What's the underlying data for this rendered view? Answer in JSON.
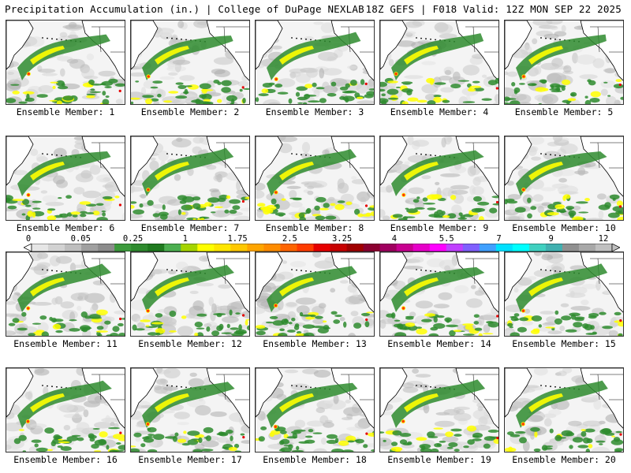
{
  "header": {
    "left": "Precipitation Accumulation (in.) | College of DuPage NEXLAB",
    "right": "18Z GEFS | F018 Valid: 12Z MON SEP 22 2025"
  },
  "colorbar": {
    "tick_labels": [
      "0",
      "0.05",
      "0.25",
      "1",
      "1.75",
      "2.5",
      "3.25",
      "4",
      "5.5",
      "7",
      "9",
      "12"
    ],
    "colors": [
      "#e6e6e6",
      "#d2d2d2",
      "#bebebe",
      "#a0a0a0",
      "#8c8c8c",
      "#3c9a3c",
      "#2e8b2e",
      "#1f7a1f",
      "#4caf50",
      "#a5d400",
      "#ffff00",
      "#ffe600",
      "#ffc800",
      "#ffa500",
      "#ff8c00",
      "#ff6400",
      "#ff3c00",
      "#e60000",
      "#c80000",
      "#a00000",
      "#8b0030",
      "#a00060",
      "#c80090",
      "#e600c8",
      "#ff00ff",
      "#c040ff",
      "#8060ff",
      "#40a0ff",
      "#00e0ff",
      "#00ffff",
      "#40d0c0",
      "#40b0b0",
      "#909090",
      "#a8a8a8",
      "#c0c0c0"
    ]
  },
  "panels": [
    {
      "label": "Ensemble Member: 1"
    },
    {
      "label": "Ensemble Member: 2"
    },
    {
      "label": "Ensemble Member: 3"
    },
    {
      "label": "Ensemble Member: 4"
    },
    {
      "label": "Ensemble Member: 5"
    },
    {
      "label": "Ensemble Member: 6"
    },
    {
      "label": "Ensemble Member: 7"
    },
    {
      "label": "Ensemble Member: 8"
    },
    {
      "label": "Ensemble Member: 9"
    },
    {
      "label": "Ensemble Member: 10"
    },
    {
      "label": "Ensemble Member: 11"
    },
    {
      "label": "Ensemble Member: 12"
    },
    {
      "label": "Ensemble Member: 13"
    },
    {
      "label": "Ensemble Member: 14"
    },
    {
      "label": "Ensemble Member: 15"
    },
    {
      "label": "Ensemble Member: 16"
    },
    {
      "label": "Ensemble Member: 17"
    },
    {
      "label": "Ensemble Member: 18"
    },
    {
      "label": "Ensemble Member: 19"
    },
    {
      "label": "Ensemble Member: 20"
    }
  ]
}
